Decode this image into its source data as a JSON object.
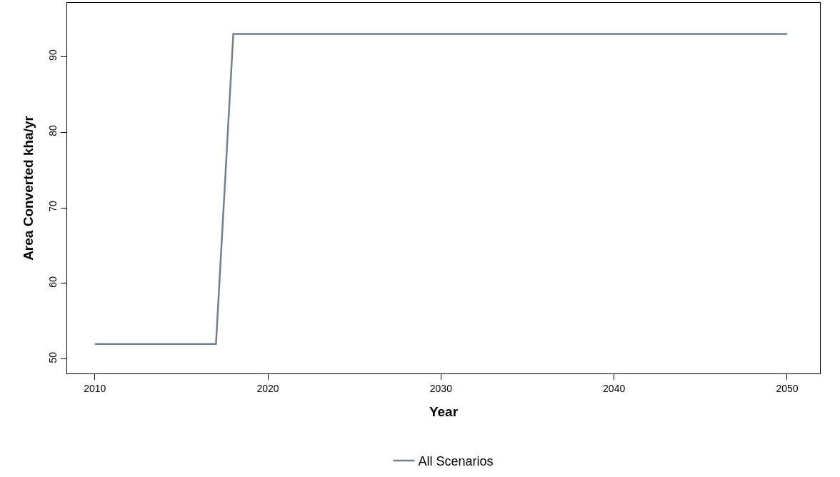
{
  "chart_data": {
    "type": "line",
    "xlabel": "Year",
    "ylabel": "Area Converted kha/yr",
    "x": [
      2010,
      2017,
      2018,
      2050
    ],
    "series": [
      {
        "name": "All Scenarios",
        "color": "#708090",
        "values": [
          52,
          52,
          93,
          93
        ]
      }
    ],
    "xlim": [
      2008.4,
      2051.9
    ],
    "xticks": [
      2010,
      2020,
      2030,
      2040,
      2050
    ],
    "ylim": [
      48.1,
      97.1
    ],
    "yticks": [
      50,
      60,
      70,
      80,
      90
    ],
    "grid": false,
    "legend": "bottom",
    "marker": "none",
    "line_style": "solid"
  }
}
